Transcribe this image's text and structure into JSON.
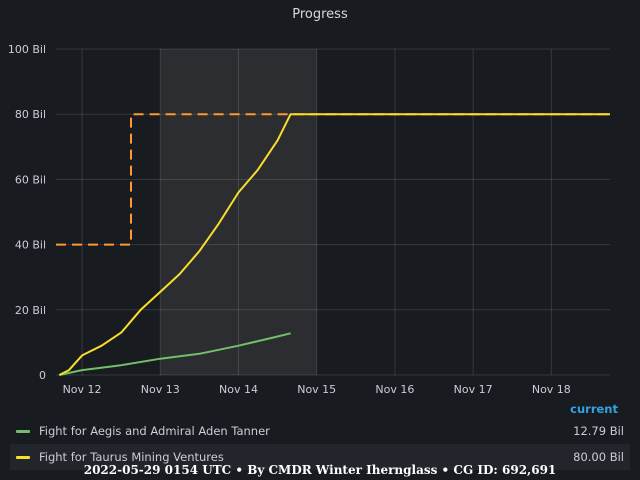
{
  "panel": {
    "title": "Progress"
  },
  "chart_data": {
    "type": "line",
    "title": "Progress",
    "x_range": [
      "2022-05-11T16:00:00Z",
      "2022-05-18T18:00:00Z"
    ],
    "x_ticks": [
      "Nov 12",
      "Nov 13",
      "Nov 14",
      "Nov 15",
      "Nov 16",
      "Nov 17",
      "Nov 18"
    ],
    "y_ticks": [
      "0",
      "20 Bil",
      "40 Bil",
      "60 Bil",
      "80 Bil",
      "100 Bil"
    ],
    "ylim": [
      0,
      100
    ],
    "y_unit": "Bil",
    "grid": true,
    "shaded_region": [
      "2022-05-13T00:00:00Z",
      "2022-05-15T00:00:00Z"
    ],
    "series": [
      {
        "name": "Fight for Aegis and Admiral Aden Tanner",
        "color": "#73bf69",
        "style": "solid",
        "x": [
          "2022-05-11T17:00:00Z",
          "2022-05-12T00:00:00Z",
          "2022-05-12T12:00:00Z",
          "2022-05-13T00:00:00Z",
          "2022-05-13T12:00:00Z",
          "2022-05-14T00:00:00Z",
          "2022-05-14T12:00:00Z",
          "2022-05-14T16:00:00Z"
        ],
        "y": [
          0,
          1.5,
          3.0,
          5.0,
          6.5,
          9.0,
          11.8,
          12.79
        ]
      },
      {
        "name": "Fight for Taurus Mining Ventures",
        "color": "#fade2a",
        "style": "solid",
        "x": [
          "2022-05-11T17:00:00Z",
          "2022-05-11T20:00:00Z",
          "2022-05-12T00:00:00Z",
          "2022-05-12T06:00:00Z",
          "2022-05-12T12:00:00Z",
          "2022-05-12T18:00:00Z",
          "2022-05-13T00:00:00Z",
          "2022-05-13T06:00:00Z",
          "2022-05-13T12:00:00Z",
          "2022-05-13T18:00:00Z",
          "2022-05-14T00:00:00Z",
          "2022-05-14T06:00:00Z",
          "2022-05-14T12:00:00Z",
          "2022-05-14T16:00:00Z",
          "2022-05-18T18:00:00Z"
        ],
        "y": [
          0,
          1.5,
          6,
          9,
          13,
          20,
          25.5,
          31,
          38,
          46.5,
          56,
          63,
          72,
          80,
          80
        ]
      },
      {
        "name": "Target",
        "color": "#ff9830",
        "style": "dashed",
        "x": [
          "2022-05-11T16:00:00Z",
          "2022-05-12T15:00:00Z",
          "2022-05-12T15:00:00Z",
          "2022-05-18T18:00:00Z"
        ],
        "y": [
          40,
          40,
          80,
          80
        ]
      }
    ]
  },
  "legend": {
    "header": "current",
    "items": [
      {
        "name": "Fight for Aegis and Admiral Aden Tanner",
        "value": "12.79 Bil",
        "color": "#73bf69"
      },
      {
        "name": "Fight for Taurus Mining Ventures",
        "value": "80.00 Bil",
        "color": "#fade2a"
      }
    ]
  },
  "footer": {
    "text": "2022-05-29 0154 UTC • By CMDR Winter Ihernglass • CG ID: 692,691"
  }
}
